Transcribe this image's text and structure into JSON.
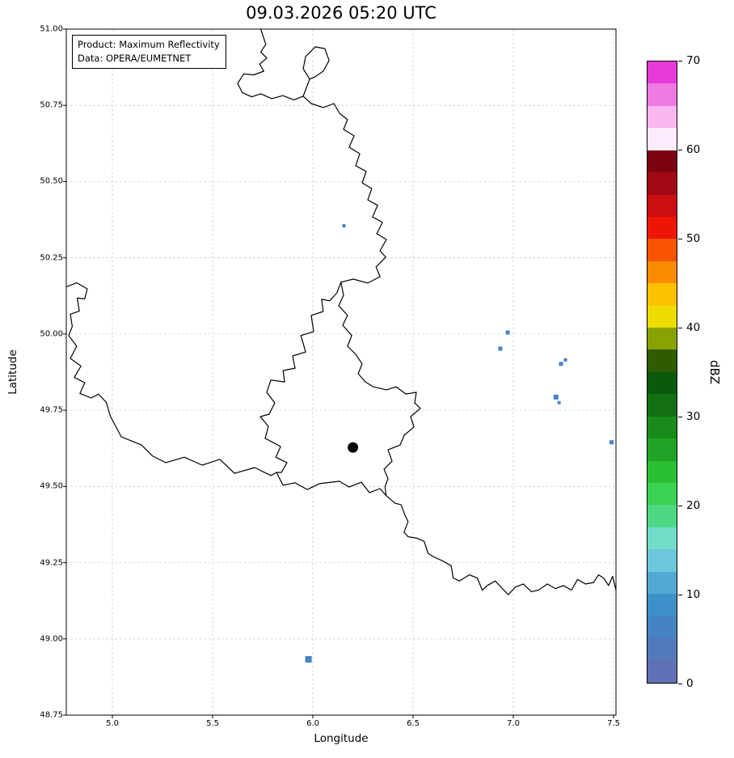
{
  "title": "09.03.2026 05:20 UTC",
  "annotation": {
    "product": "Product: Maximum Reflectivity",
    "source": "Data: OPERA/EUMETNET"
  },
  "axes": {
    "xlabel": "Longitude",
    "ylabel": "Latitude",
    "xlim": [
      4.77,
      7.512
    ],
    "ylim": [
      48.75,
      51.0
    ],
    "xticks": [
      5.0,
      5.5,
      6.0,
      6.5,
      7.0,
      7.5
    ],
    "yticks": [
      48.75,
      49.0,
      49.25,
      49.5,
      49.75,
      50.0,
      50.25,
      50.5,
      50.75,
      51.0
    ],
    "grid": true
  },
  "colorbar": {
    "label": "dBZ",
    "vmin": 0,
    "vmax": 70,
    "ticks": [
      0,
      10,
      20,
      30,
      40,
      50,
      60,
      70
    ],
    "colors_top_to_bottom": [
      "#e73bd7",
      "#f07ae3",
      "#f8b7ee",
      "#fdeafc",
      "#7c0310",
      "#a30914",
      "#cb0e11",
      "#ee1507",
      "#f85203",
      "#fb8b02",
      "#fdc101",
      "#ecdc02",
      "#8aa201",
      "#2f5c03",
      "#0c590d",
      "#127013",
      "#198a1c",
      "#21a426",
      "#2bbf35",
      "#3ad255",
      "#4fd883",
      "#72dcc9",
      "#6cc8dc",
      "#52aad2",
      "#3d90c8",
      "#4583c2",
      "#5279bb",
      "#5f70b5"
    ]
  },
  "chart_data": {
    "type": "heatmap",
    "title": "09.03.2026 05:20 UTC",
    "xlabel": "Longitude",
    "ylabel": "Latitude",
    "xlim": [
      4.77,
      7.512
    ],
    "ylim": [
      48.75,
      51.0
    ],
    "grid": true,
    "colorbar_label": "dBZ",
    "colorbar_range": [
      0,
      70
    ],
    "echo_color": "#4583c2",
    "echoes": [
      {
        "lon": 6.155,
        "lat": 50.355,
        "dbz": 8,
        "px": 4
      },
      {
        "lon": 6.972,
        "lat": 50.005,
        "dbz": 8,
        "px": 5
      },
      {
        "lon": 6.935,
        "lat": 49.952,
        "dbz": 8,
        "px": 5
      },
      {
        "lon": 7.238,
        "lat": 49.902,
        "dbz": 8,
        "px": 5
      },
      {
        "lon": 7.26,
        "lat": 49.915,
        "dbz": 8,
        "px": 4
      },
      {
        "lon": 7.213,
        "lat": 49.793,
        "dbz": 8,
        "px": 6
      },
      {
        "lon": 7.228,
        "lat": 49.775,
        "dbz": 8,
        "px": 4
      },
      {
        "lon": 7.49,
        "lat": 49.645,
        "dbz": 8,
        "px": 5
      },
      {
        "lon": 5.978,
        "lat": 48.933,
        "dbz": 8,
        "px": 8
      }
    ],
    "marker": {
      "lon": 6.2,
      "lat": 49.628,
      "color": "#000000",
      "radius_px": 6.5,
      "symbol": "filled-circle"
    },
    "borders": [
      [
        [
          5.74,
          51.0
        ],
        [
          5.765,
          50.95
        ],
        [
          5.74,
          50.925
        ],
        [
          5.77,
          50.905
        ],
        [
          5.735,
          50.885
        ],
        [
          5.755,
          50.862
        ],
        [
          5.705,
          50.85
        ],
        [
          5.655,
          50.853
        ],
        [
          5.625,
          50.822
        ],
        [
          5.648,
          50.792
        ],
        [
          5.695,
          50.778
        ],
        [
          5.74,
          50.788
        ],
        [
          5.795,
          50.772
        ],
        [
          5.85,
          50.782
        ],
        [
          5.905,
          50.768
        ],
        [
          5.952,
          50.78
        ],
        [
          5.992,
          50.756
        ],
        [
          6.052,
          50.743
        ],
        [
          6.105,
          50.756
        ],
        [
          6.133,
          50.724
        ],
        [
          6.173,
          50.703
        ],
        [
          6.153,
          50.671
        ],
        [
          6.206,
          50.65
        ],
        [
          6.181,
          50.613
        ],
        [
          6.234,
          50.591
        ],
        [
          6.214,
          50.552
        ],
        [
          6.266,
          50.533
        ],
        [
          6.246,
          50.496
        ],
        [
          6.294,
          50.477
        ],
        [
          6.274,
          50.44
        ],
        [
          6.323,
          50.422
        ],
        [
          6.298,
          50.384
        ],
        [
          6.347,
          50.366
        ],
        [
          6.319,
          50.329
        ],
        [
          6.367,
          50.31
        ],
        [
          6.335,
          50.273
        ],
        [
          6.363,
          50.252
        ],
        [
          6.315,
          50.22
        ],
        [
          6.335,
          50.188
        ],
        [
          6.274,
          50.167
        ],
        [
          6.202,
          50.18
        ],
        [
          6.14,
          50.17
        ]
      ],
      [
        [
          5.984,
          50.836
        ],
        [
          5.952,
          50.87
        ],
        [
          5.964,
          50.91
        ],
        [
          6.012,
          50.942
        ],
        [
          6.06,
          50.936
        ],
        [
          6.081,
          50.897
        ],
        [
          6.052,
          50.862
        ],
        [
          6.012,
          50.844
        ],
        [
          5.984,
          50.836
        ]
      ],
      [
        [
          5.984,
          50.836
        ],
        [
          5.966,
          50.805
        ],
        [
          5.952,
          50.78
        ]
      ],
      [
        [
          6.14,
          50.17
        ],
        [
          6.12,
          50.135
        ],
        [
          6.084,
          50.109
        ],
        [
          6.044,
          50.114
        ],
        [
          6.052,
          50.074
        ],
        [
          5.992,
          50.061
        ],
        [
          6.004,
          50.008
        ],
        [
          5.94,
          49.995
        ],
        [
          5.964,
          49.941
        ],
        [
          5.899,
          49.928
        ],
        [
          5.911,
          49.888
        ],
        [
          5.851,
          49.88
        ],
        [
          5.859,
          49.843
        ],
        [
          5.79,
          49.849
        ],
        [
          5.77,
          49.809
        ],
        [
          5.81,
          49.774
        ],
        [
          5.782,
          49.737
        ],
        [
          5.738,
          49.729
        ],
        [
          5.778,
          49.697
        ],
        [
          5.762,
          49.658
        ],
        [
          5.839,
          49.631
        ],
        [
          5.815,
          49.596
        ],
        [
          5.871,
          49.578
        ],
        [
          5.843,
          49.546
        ],
        [
          5.819,
          49.546
        ]
      ],
      [
        [
          6.14,
          50.17
        ],
        [
          6.153,
          50.127
        ],
        [
          6.129,
          50.093
        ],
        [
          6.173,
          50.061
        ],
        [
          6.149,
          50.029
        ],
        [
          6.194,
          49.995
        ],
        [
          6.173,
          49.96
        ],
        [
          6.214,
          49.933
        ],
        [
          6.246,
          49.902
        ],
        [
          6.226,
          49.87
        ],
        [
          6.262,
          49.843
        ],
        [
          6.302,
          49.827
        ],
        [
          6.367,
          49.817
        ],
        [
          6.415,
          49.827
        ],
        [
          6.464,
          49.803
        ],
        [
          6.516,
          49.809
        ],
        [
          6.508,
          49.774
        ],
        [
          6.536,
          49.756
        ],
        [
          6.488,
          49.729
        ],
        [
          6.504,
          49.695
        ],
        [
          6.456,
          49.668
        ],
        [
          6.435,
          49.636
        ],
        [
          6.375,
          49.62
        ],
        [
          6.395,
          49.583
        ],
        [
          6.355,
          49.557
        ],
        [
          6.375,
          49.525
        ],
        [
          6.36,
          49.5
        ],
        [
          6.365,
          49.47
        ]
      ],
      [
        [
          5.819,
          49.546
        ],
        [
          5.851,
          49.504
        ],
        [
          5.911,
          49.512
        ],
        [
          5.972,
          49.49
        ],
        [
          6.032,
          49.509
        ],
        [
          6.133,
          49.517
        ],
        [
          6.181,
          49.498
        ],
        [
          6.242,
          49.514
        ],
        [
          6.282,
          49.48
        ],
        [
          6.335,
          49.493
        ],
        [
          6.365,
          49.47
        ]
      ],
      [
        [
          6.365,
          49.47
        ],
        [
          6.41,
          49.445
        ],
        [
          6.44,
          49.44
        ],
        [
          6.46,
          49.405
        ],
        [
          6.475,
          49.385
        ],
        [
          6.455,
          49.35
        ],
        [
          6.475,
          49.335
        ],
        [
          6.52,
          49.33
        ],
        [
          6.555,
          49.32
        ],
        [
          6.575,
          49.28
        ],
        [
          6.6,
          49.27
        ],
        [
          6.65,
          49.255
        ],
        [
          6.69,
          49.24
        ],
        [
          6.7,
          49.2
        ],
        [
          6.73,
          49.19
        ],
        [
          6.78,
          49.21
        ],
        [
          6.82,
          49.2
        ],
        [
          6.845,
          49.16
        ],
        [
          6.87,
          49.175
        ],
        [
          6.91,
          49.19
        ],
        [
          6.945,
          49.165
        ],
        [
          6.975,
          49.145
        ],
        [
          7.01,
          49.17
        ],
        [
          7.05,
          49.18
        ],
        [
          7.09,
          49.155
        ],
        [
          7.125,
          49.16
        ],
        [
          7.17,
          49.18
        ],
        [
          7.21,
          49.165
        ],
        [
          7.25,
          49.175
        ],
        [
          7.29,
          49.16
        ],
        [
          7.32,
          49.195
        ],
        [
          7.36,
          49.18
        ],
        [
          7.4,
          49.185
        ],
        [
          7.425,
          49.21
        ],
        [
          7.45,
          49.2
        ],
        [
          7.475,
          49.175
        ],
        [
          7.495,
          49.205
        ],
        [
          7.512,
          49.16
        ]
      ],
      [
        [
          4.77,
          50.155
        ],
        [
          4.823,
          50.168
        ],
        [
          4.875,
          50.148
        ],
        [
          4.862,
          50.115
        ],
        [
          4.825,
          50.118
        ],
        [
          4.835,
          50.075
        ],
        [
          4.79,
          50.065
        ],
        [
          4.8,
          50.025
        ],
        [
          4.782,
          49.995
        ],
        [
          4.822,
          49.96
        ],
        [
          4.79,
          49.92
        ],
        [
          4.843,
          49.895
        ],
        [
          4.81,
          49.858
        ],
        [
          4.862,
          49.84
        ],
        [
          4.838,
          49.805
        ],
        [
          4.895,
          49.79
        ],
        [
          4.931,
          49.803
        ],
        [
          4.97,
          49.775
        ],
        [
          4.99,
          49.73
        ],
        [
          5.044,
          49.663
        ],
        [
          5.1,
          49.648
        ],
        [
          5.145,
          49.636
        ],
        [
          5.2,
          49.6
        ],
        [
          5.266,
          49.578
        ],
        [
          5.359,
          49.596
        ],
        [
          5.448,
          49.57
        ],
        [
          5.536,
          49.589
        ],
        [
          5.609,
          49.543
        ],
        [
          5.71,
          49.562
        ],
        [
          5.79,
          49.536
        ],
        [
          5.819,
          49.546
        ]
      ]
    ]
  }
}
